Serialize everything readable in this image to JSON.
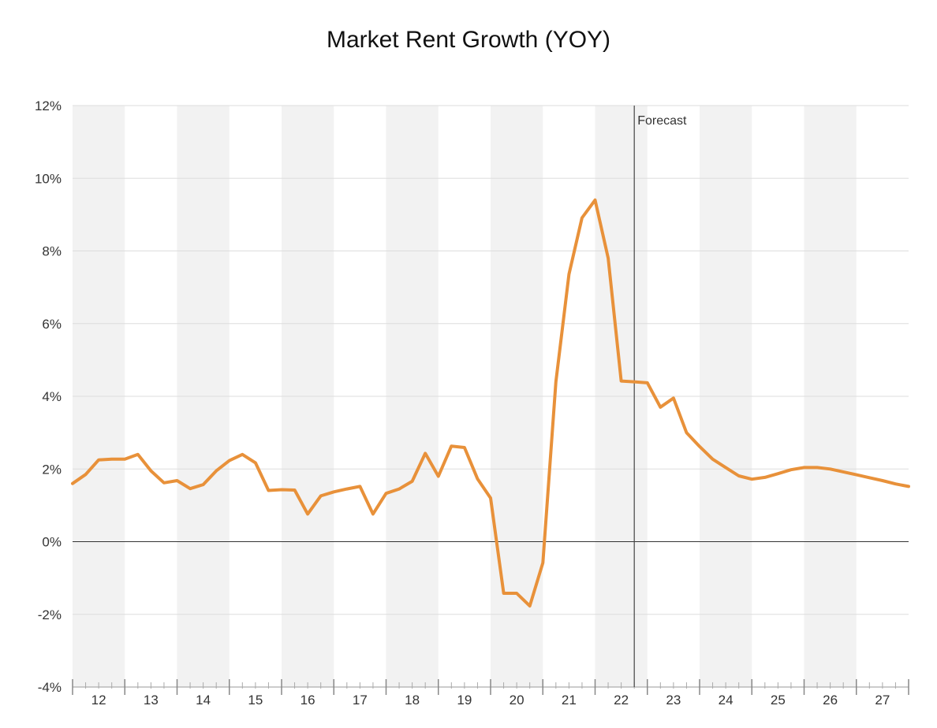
{
  "chart_data": {
    "type": "line",
    "title": "Market Rent Growth (YOY)",
    "xlabel": "",
    "ylabel": "",
    "ylim": [
      -4,
      12
    ],
    "y_ticks": [
      {
        "value": -4,
        "label": "-4%"
      },
      {
        "value": -2,
        "label": "-2%"
      },
      {
        "value": 0,
        "label": "0%"
      },
      {
        "value": 2,
        "label": "2%"
      },
      {
        "value": 4,
        "label": "4%"
      },
      {
        "value": 6,
        "label": "6%"
      },
      {
        "value": 8,
        "label": "8%"
      },
      {
        "value": 10,
        "label": "10%"
      },
      {
        "value": 12,
        "label": "12%"
      }
    ],
    "x_range": [
      2012,
      2028
    ],
    "years": [
      "12",
      "13",
      "14",
      "15",
      "16",
      "17",
      "18",
      "19",
      "20",
      "21",
      "22",
      "23",
      "24",
      "25",
      "26",
      "27"
    ],
    "grid": true,
    "alternate_year_shading": true,
    "forecast": {
      "label": "Forecast",
      "x": 2022.75
    },
    "line_color": "#E8913A",
    "series": [
      {
        "x": [
          2012.0,
          2012.25,
          2012.5,
          2012.75,
          2013.0,
          2013.25,
          2013.5,
          2013.75,
          2014.0,
          2014.25,
          2014.5,
          2014.75,
          2015.0,
          2015.25,
          2015.5,
          2015.75,
          2016.0,
          2016.25,
          2016.5,
          2016.75,
          2017.0,
          2017.25,
          2017.5,
          2017.75,
          2018.0,
          2018.25,
          2018.5,
          2018.75,
          2019.0,
          2019.25,
          2019.5,
          2019.75,
          2020.0,
          2020.25,
          2020.5,
          2020.75,
          2021.0,
          2021.25,
          2021.5,
          2021.75,
          2022.0,
          2022.25,
          2022.5,
          2022.75,
          2023.0,
          2023.25,
          2023.5,
          2023.75,
          2024.0,
          2024.25,
          2024.5,
          2024.75,
          2025.0,
          2025.25,
          2025.5,
          2025.75,
          2026.0,
          2026.25,
          2026.5,
          2026.75,
          2027.0,
          2027.25,
          2027.5,
          2027.75,
          2028.0
        ],
        "values": [
          1.6,
          1.85,
          2.25,
          2.27,
          2.27,
          2.4,
          1.95,
          1.62,
          1.68,
          1.46,
          1.57,
          1.95,
          2.23,
          2.4,
          2.17,
          1.41,
          1.43,
          1.42,
          0.76,
          1.26,
          1.37,
          1.45,
          1.52,
          0.76,
          1.33,
          1.45,
          1.66,
          2.43,
          1.8,
          2.63,
          2.59,
          1.73,
          1.2,
          -1.42,
          -1.42,
          -1.77,
          -0.58,
          4.4,
          7.36,
          8.91,
          9.4,
          7.8,
          4.42,
          4.4,
          4.37,
          3.7,
          3.95,
          3.0,
          2.62,
          2.27,
          2.04,
          1.81,
          1.72,
          1.77,
          1.87,
          1.98,
          2.04,
          2.04,
          2.0,
          1.92,
          1.84,
          1.76,
          1.68,
          1.59,
          1.52
        ]
      }
    ]
  }
}
